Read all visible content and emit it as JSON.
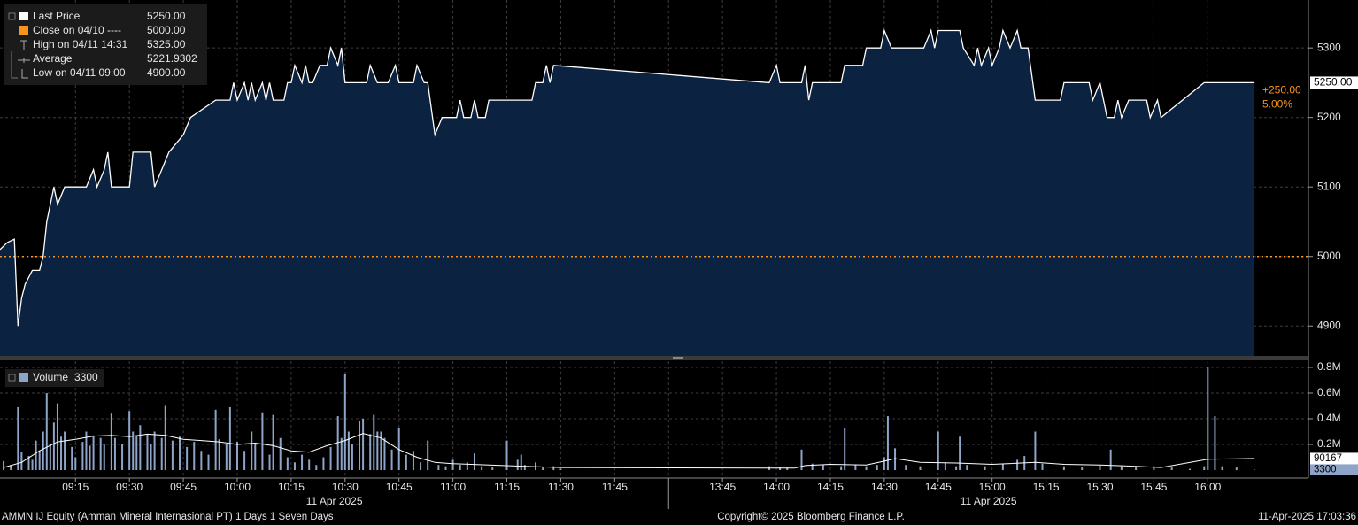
{
  "chart_data": [
    {
      "type": "area",
      "ylim": [
        4857,
        5369
      ],
      "yticks": [
        4900,
        5000,
        5100,
        5200,
        5300
      ],
      "grid": true,
      "series": [
        {
          "color": "#ffffff",
          "fill": "#0b2240",
          "x": [
            "08:54",
            "08:56",
            "08:58",
            "08:59",
            "09:00",
            "09:01",
            "09:03",
            "09:05",
            "09:06",
            "09:07",
            "09:09",
            "09:10",
            "09:12",
            "09:18",
            "09:20",
            "09:21",
            "09:23",
            "09:24",
            "09:25",
            "09:30",
            "09:31",
            "09:36",
            "09:37",
            "09:39",
            "09:41",
            "09:45",
            "09:47",
            "09:54",
            "09:58",
            "09:59",
            "10:00",
            "10:02",
            "10:03",
            "10:04",
            "10:05",
            "10:07",
            "10:08",
            "10:09",
            "10:10",
            "10:13",
            "10:14",
            "10:15",
            "10:16",
            "10:18",
            "10:19",
            "10:20",
            "10:21",
            "10:23",
            "10:25",
            "10:26",
            "10:28",
            "10:29",
            "10:30",
            "10:36",
            "10:37",
            "10:39",
            "10:42",
            "10:44",
            "10:45",
            "10:49",
            "10:50",
            "10:52",
            "10:53",
            "10:55",
            "10:57",
            "11:01",
            "11:02",
            "11:03",
            "11:05",
            "11:06",
            "11:07",
            "11:09",
            "11:10",
            "11:22",
            "11:23",
            "11:25",
            "11:26",
            "11:27",
            "11:28",
            "13:58",
            "14:00",
            "14:01",
            "14:07",
            "14:08",
            "14:09",
            "14:10",
            "14:18",
            "14:19",
            "14:24",
            "14:25",
            "14:29",
            "14:30",
            "14:32",
            "14:41",
            "14:43",
            "14:44",
            "14:45",
            "14:51",
            "14:52",
            "14:55",
            "14:56",
            "14:57",
            "14:59",
            "15:00",
            "15:02",
            "15:03",
            "15:05",
            "15:07",
            "15:08",
            "15:10",
            "15:12",
            "15:19",
            "15:20",
            "15:27",
            "15:28",
            "15:30",
            "15:32",
            "15:34",
            "15:35",
            "15:36",
            "15:38",
            "15:43",
            "15:44",
            "15:46",
            "15:47",
            "15:59",
            "16:13"
          ],
          "values": [
            5010,
            5020,
            5025,
            4900,
            4940,
            4960,
            4980,
            4980,
            5000,
            5050,
            5100,
            5075,
            5100,
            5100,
            5125,
            5100,
            5125,
            5150,
            5100,
            5100,
            5150,
            5150,
            5100,
            5125,
            5150,
            5175,
            5200,
            5225,
            5225,
            5250,
            5225,
            5250,
            5225,
            5250,
            5225,
            5250,
            5225,
            5250,
            5225,
            5225,
            5250,
            5250,
            5275,
            5250,
            5275,
            5250,
            5250,
            5275,
            5275,
            5300,
            5275,
            5300,
            5250,
            5250,
            5275,
            5250,
            5250,
            5275,
            5250,
            5250,
            5275,
            5250,
            5250,
            5175,
            5200,
            5200,
            5225,
            5200,
            5200,
            5225,
            5200,
            5200,
            5225,
            5225,
            5250,
            5250,
            5275,
            5250,
            5275,
            5250,
            5275,
            5250,
            5250,
            5275,
            5225,
            5250,
            5250,
            5275,
            5275,
            5300,
            5300,
            5325,
            5300,
            5300,
            5325,
            5300,
            5325,
            5325,
            5300,
            5275,
            5300,
            5275,
            5300,
            5275,
            5300,
            5325,
            5300,
            5325,
            5300,
            5300,
            5225,
            5225,
            5250,
            5250,
            5225,
            5250,
            5200,
            5200,
            5225,
            5200,
            5225,
            5225,
            5200,
            5225,
            5200,
            5250,
            5250
          ]
        }
      ],
      "legend": [
        {
          "name": "Last Price",
          "value": 5250,
          "label": "5250.00",
          "color": "#ffffff"
        },
        {
          "name": "Close on 04/10 ----",
          "value": 5000,
          "label": "5000.00",
          "color": "#f7941d"
        },
        {
          "name": "High on 04/11 14:31",
          "label": "5325.00"
        },
        {
          "name": "Average",
          "label": "5221.9302"
        },
        {
          "name": "Low on 04/11 09:00",
          "label": "4900.00"
        }
      ],
      "change": [
        "+250.00",
        "5.00%"
      ]
    },
    {
      "type": "bar",
      "ylim": [
        -62000,
        848000
      ],
      "yticks": [
        {
          "value": 200000,
          "label": "0.2M"
        },
        {
          "value": 400000,
          "label": "0.4M"
        },
        {
          "value": 600000,
          "label": "0.6M"
        },
        {
          "value": 800000,
          "label": "0.8M"
        }
      ],
      "grid": true,
      "series": [
        {
          "name": "Volume",
          "color": "#8ea4c8",
          "x": [
            "08:55",
            "08:57",
            "08:59",
            "09:00",
            "09:02",
            "09:03",
            "09:04",
            "09:05",
            "09:06",
            "09:07",
            "09:08",
            "09:09",
            "09:10",
            "09:11",
            "09:12",
            "09:14",
            "09:15",
            "09:17",
            "09:18",
            "09:19",
            "09:20",
            "09:22",
            "09:23",
            "09:25",
            "09:26",
            "09:28",
            "09:30",
            "09:31",
            "09:32",
            "09:33",
            "09:35",
            "09:36",
            "09:37",
            "09:39",
            "09:40",
            "09:42",
            "09:44",
            "09:46",
            "09:48",
            "09:50",
            "09:52",
            "09:54",
            "09:55",
            "09:57",
            "09:58",
            "10:00",
            "10:02",
            "10:04",
            "10:05",
            "10:07",
            "10:09",
            "10:10",
            "10:12",
            "10:14",
            "10:16",
            "10:18",
            "10:20",
            "10:22",
            "10:24",
            "10:26",
            "10:28",
            "10:29",
            "10:30",
            "10:31",
            "10:32",
            "10:34",
            "10:35",
            "10:37",
            "10:38",
            "10:39",
            "10:40",
            "10:41",
            "10:43",
            "10:45",
            "10:47",
            "10:49",
            "10:51",
            "10:53",
            "10:56",
            "10:58",
            "11:00",
            "11:02",
            "11:04",
            "11:06",
            "11:08",
            "11:11",
            "11:15",
            "11:18",
            "11:19",
            "11:20",
            "11:23",
            "11:25",
            "11:28",
            "11:30",
            "13:58",
            "14:01",
            "14:03",
            "14:07",
            "14:10",
            "14:13",
            "14:18",
            "14:19",
            "14:22",
            "14:25",
            "14:28",
            "14:30",
            "14:31",
            "14:33",
            "14:36",
            "14:40",
            "14:45",
            "14:47",
            "14:50",
            "14:51",
            "14:53",
            "14:58",
            "15:03",
            "15:07",
            "15:09",
            "15:12",
            "15:14",
            "15:20",
            "15:25",
            "15:30",
            "15:33",
            "15:36",
            "15:40",
            "15:45",
            "15:50",
            "15:55",
            "15:59",
            "16:00",
            "16:02",
            "16:04",
            "16:08",
            "16:13"
          ],
          "values": [
            70000,
            40000,
            490000,
            140000,
            110000,
            80000,
            230000,
            150000,
            300000,
            600000,
            200000,
            370000,
            520000,
            260000,
            300000,
            180000,
            100000,
            220000,
            300000,
            190000,
            270000,
            250000,
            200000,
            440000,
            250000,
            200000,
            460000,
            300000,
            270000,
            350000,
            280000,
            200000,
            300000,
            250000,
            500000,
            230000,
            260000,
            180000,
            220000,
            150000,
            120000,
            470000,
            240000,
            200000,
            490000,
            220000,
            150000,
            300000,
            200000,
            450000,
            120000,
            430000,
            250000,
            100000,
            60000,
            120000,
            80000,
            40000,
            100000,
            180000,
            420000,
            250000,
            750000,
            300000,
            200000,
            380000,
            400000,
            280000,
            430000,
            300000,
            300000,
            250000,
            160000,
            330000,
            120000,
            150000,
            60000,
            230000,
            40000,
            30000,
            80000,
            40000,
            60000,
            130000,
            30000,
            20000,
            230000,
            80000,
            120000,
            40000,
            60000,
            20000,
            30000,
            10000,
            30000,
            25000,
            20000,
            160000,
            50000,
            40000,
            30000,
            330000,
            40000,
            30000,
            40000,
            100000,
            420000,
            170000,
            40000,
            30000,
            300000,
            60000,
            30000,
            260000,
            40000,
            30000,
            50000,
            80000,
            110000,
            300000,
            50000,
            30000,
            20000,
            40000,
            160000,
            30000,
            20000,
            30000,
            20000,
            10000,
            30000,
            800000,
            420000,
            30000,
            20000,
            3300
          ]
        },
        {
          "type": "line",
          "color": "#ffffff",
          "x": [
            "08:55",
            "09:00",
            "09:05",
            "09:10",
            "09:15",
            "09:20",
            "09:25",
            "09:30",
            "09:35",
            "09:40",
            "09:45",
            "09:50",
            "09:55",
            "10:00",
            "10:05",
            "10:10",
            "10:15",
            "10:20",
            "10:25",
            "10:30",
            "10:35",
            "10:40",
            "10:45",
            "10:50",
            "10:55",
            "11:00",
            "11:10",
            "11:20",
            "11:30",
            "13:58",
            "14:05",
            "14:08",
            "14:15",
            "14:25",
            "14:30",
            "14:33",
            "14:40",
            "14:50",
            "15:00",
            "15:12",
            "15:20",
            "15:30",
            "15:40",
            "15:47",
            "16:00",
            "16:13"
          ],
          "values": [
            20000,
            60000,
            150000,
            220000,
            240000,
            265000,
            270000,
            260000,
            280000,
            270000,
            240000,
            230000,
            220000,
            200000,
            210000,
            190000,
            150000,
            140000,
            190000,
            230000,
            285000,
            250000,
            160000,
            100000,
            60000,
            50000,
            40000,
            30000,
            20000,
            15000,
            15000,
            35000,
            45000,
            40000,
            70000,
            90000,
            60000,
            55000,
            45000,
            60000,
            45000,
            40000,
            30000,
            20000,
            85000,
            90167
          ]
        }
      ]
    }
  ],
  "x_axis": {
    "xlim": [
      "08:54",
      "16:28"
    ],
    "xbreak": [
      "12:00",
      "13:30"
    ],
    "xticks": [
      "09:15",
      "09:30",
      "09:45",
      "10:00",
      "10:15",
      "10:30",
      "10:45",
      "11:00",
      "11:15",
      "11:30",
      "11:45",
      "13:45",
      "14:00",
      "14:15",
      "14:30",
      "14:45",
      "15:00",
      "15:15",
      "15:30",
      "15:45",
      "16:00"
    ],
    "date_labels": [
      "11 Apr 2025",
      "11 Apr 2025"
    ]
  },
  "footer": {
    "left": "AMMN IJ Equity (Amman Mineral Internasional PT) 1 Days 1 Seven Days",
    "center": "Copyright© 2025 Bloomberg Finance L.P.",
    "right": "11-Apr-2025 17:03:36"
  }
}
